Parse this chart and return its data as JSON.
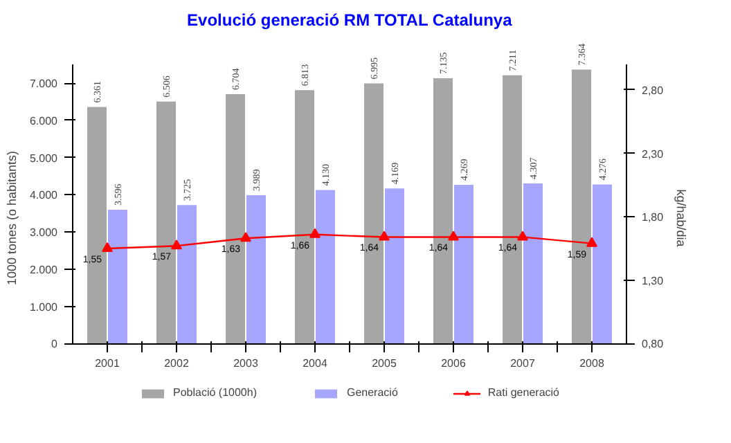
{
  "chart_data": {
    "type": "bar",
    "title": "Evolució generació RM TOTAL Catalunya",
    "ylabel": "1000 tones (o habitants)",
    "y2label": "kg/hab/dia",
    "categories": [
      "2001",
      "2002",
      "2003",
      "2004",
      "2005",
      "2006",
      "2007",
      "2008"
    ],
    "series": [
      {
        "name": "Població (1000h)",
        "color": "#a6a6a6",
        "values": [
          6361,
          6506,
          6704,
          6813,
          6995,
          7135,
          7211,
          7364
        ],
        "value_labels": [
          "6.361",
          "6.506",
          "6.704",
          "6.813",
          "6.995",
          "7.135",
          "7.211",
          "7.364"
        ]
      },
      {
        "name": "Generació",
        "color": "#a6a6ff",
        "values": [
          3596,
          3725,
          3989,
          4130,
          4169,
          4269,
          4307,
          4276
        ],
        "value_labels": [
          "3.596",
          "3.725",
          "3.989",
          "4.130",
          "4.169",
          "4.269",
          "4.307",
          "4.276"
        ]
      },
      {
        "name": "Rati generació",
        "type": "line",
        "axis": "y2",
        "color": "#ff0000",
        "marker": "triangle",
        "values": [
          1.55,
          1.57,
          1.63,
          1.66,
          1.64,
          1.64,
          1.64,
          1.59
        ],
        "value_labels": [
          "1,55",
          "1,57",
          "1,63",
          "1,66",
          "1,64",
          "1,64",
          "1,64",
          "1,59"
        ]
      }
    ],
    "ylim": [
      0,
      7500
    ],
    "yticks": [
      {
        "value": 0,
        "label": "0"
      },
      {
        "value": 1000,
        "label": "1.000"
      },
      {
        "value": 2000,
        "label": "2.000"
      },
      {
        "value": 3000,
        "label": "3.000"
      },
      {
        "value": 4000,
        "label": "4.000"
      },
      {
        "value": 5000,
        "label": "5.000"
      },
      {
        "value": 6000,
        "label": "6.000"
      },
      {
        "value": 7000,
        "label": "7.000"
      }
    ],
    "y2lim": [
      0.8,
      3.0
    ],
    "y2ticks": [
      {
        "value": 0.8,
        "label": "0,80"
      },
      {
        "value": 1.3,
        "label": "1,30"
      },
      {
        "value": 1.8,
        "label": "1,80"
      },
      {
        "value": 2.3,
        "label": "2,30"
      },
      {
        "value": 2.8,
        "label": "2,80"
      }
    ],
    "grid": false,
    "legend": "bottom"
  }
}
